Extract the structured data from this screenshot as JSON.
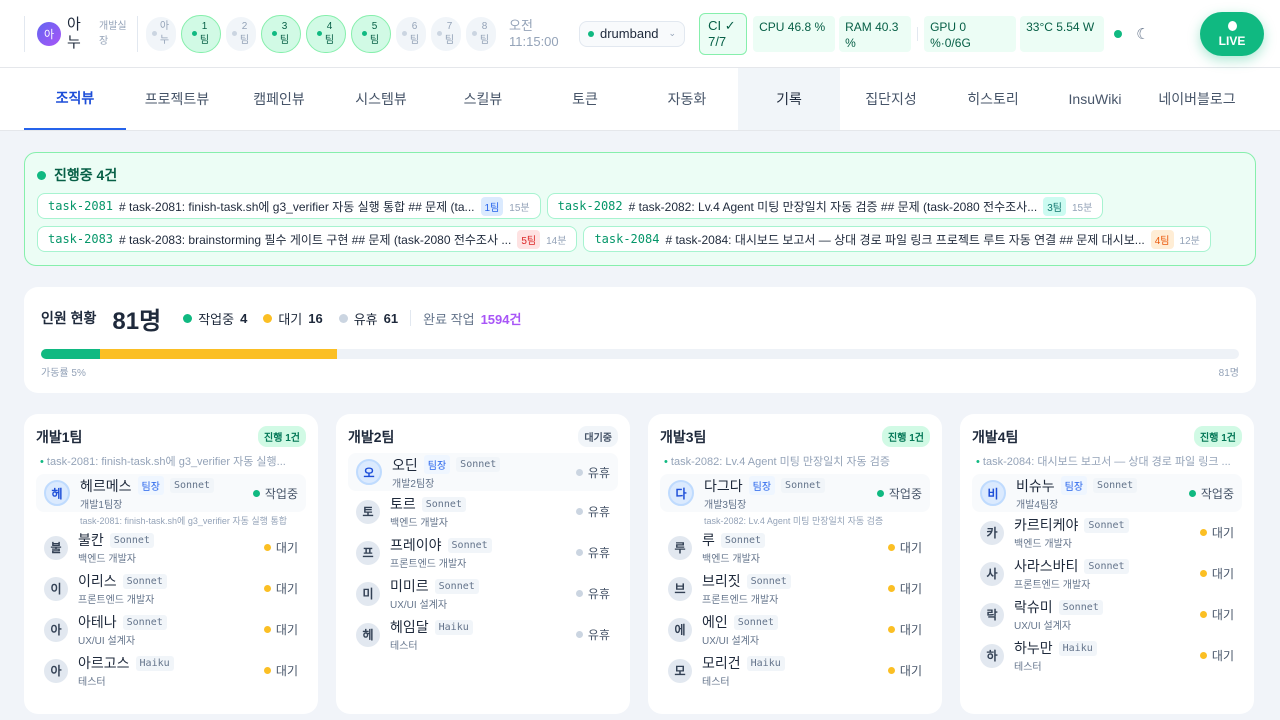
{
  "header": {
    "user": {
      "avatar": "아",
      "name": "아누",
      "role": "개발실장"
    },
    "team_chips": [
      {
        "label": "아누",
        "active": false
      },
      {
        "label": "1팀",
        "active": true
      },
      {
        "label": "2팀",
        "active": false
      },
      {
        "label": "3팀",
        "active": true
      },
      {
        "label": "4팀",
        "active": true
      },
      {
        "label": "5팀",
        "active": true
      },
      {
        "label": "6팀",
        "active": false
      },
      {
        "label": "7팀",
        "active": false
      },
      {
        "label": "8팀",
        "active": false
      }
    ],
    "time": "오전 11:15:00",
    "project": "drumband",
    "ci": "CI ✓ 7/7",
    "cpu": "CPU 46.8 %",
    "ram": "RAM 40.3 %",
    "gpu": "GPU 0 %·0/6G",
    "temp": "33°C 5.54 W",
    "theme_icon": "moon-icon",
    "live": "LIVE"
  },
  "nav": {
    "tabs": [
      "조직뷰",
      "프로젝트뷰",
      "캠페인뷰",
      "시스템뷰",
      "스킬뷰",
      "토큰",
      "자동화",
      "기록",
      "집단지성",
      "히스토리",
      "InsuWiki",
      "네이버블로그"
    ],
    "active": "조직뷰",
    "selected": "기록"
  },
  "in_progress": {
    "title": "진행중 4건",
    "items": [
      {
        "id": "task-2081",
        "text": "# task-2081: finish-task.sh에 g3_verifier 자동 실행 통합 ## 문제 (ta...",
        "team": "1팀",
        "age": "15분",
        "color": "#dbeafe",
        "tc": "#2563eb"
      },
      {
        "id": "task-2082",
        "text": "# task-2082: Lv.4 Agent 미팅 만장일치 자동 검증 ## 문제 (task-2080 전수조사...",
        "team": "3팀",
        "age": "15분",
        "color": "#ccfbf1",
        "tc": "#0f766e"
      },
      {
        "id": "task-2083",
        "text": "# task-2083: brainstorming 필수 게이트 구현 ## 문제 (task-2080 전수조사 ...",
        "team": "5팀",
        "age": "14분",
        "color": "#fee2e2",
        "tc": "#dc2626"
      },
      {
        "id": "task-2084",
        "text": "# task-2084: 대시보드 보고서 — 상대 경로 파일 링크 프로젝트 루트 자동 연결 ## 문제 대시보...",
        "team": "4팀",
        "age": "12분",
        "color": "#ffedd5",
        "tc": "#ea580c"
      }
    ]
  },
  "staff": {
    "label": "인원 현황",
    "total": "81명",
    "working_label": "작업중",
    "working": 4,
    "waiting_label": "대기",
    "waiting": 16,
    "idle_label": "유휴",
    "idle": 61,
    "done_label": "완료 작업",
    "done": "1594건",
    "utilization": "가동률 5%",
    "max": "81명",
    "colors": {
      "working": "#10b981",
      "waiting": "#fbbf24",
      "idle": "#cbd5e1"
    }
  },
  "teams": [
    {
      "name": "개발1팀",
      "badge": "진행 1건",
      "busy": true,
      "task": "task-2081: finish-task.sh에 g3_verifier 자동 실행...",
      "members": [
        {
          "av": "헤",
          "name": "헤르메스",
          "lead": "팀장",
          "model": "Sonnet",
          "role": "개발1팀장",
          "status": "작업중",
          "task": "task-2081: finish-task.sh에 g3_verifier 자동 실행 통합"
        },
        {
          "av": "불",
          "name": "불칸",
          "model": "Sonnet",
          "role": "백엔드 개발자",
          "status": "대기"
        },
        {
          "av": "이",
          "name": "이리스",
          "model": "Sonnet",
          "role": "프론트엔드 개발자",
          "status": "대기"
        },
        {
          "av": "아",
          "name": "아테나",
          "model": "Sonnet",
          "role": "UX/UI 설계자",
          "status": "대기"
        },
        {
          "av": "아",
          "name": "아르고스",
          "model": "Haiku",
          "role": "테스터",
          "status": "대기"
        }
      ]
    },
    {
      "name": "개발2팀",
      "badge": "대기중",
      "busy": false,
      "members": [
        {
          "av": "오",
          "name": "오딘",
          "lead": "팀장",
          "model": "Sonnet",
          "role": "개발2팀장",
          "status": "유휴"
        },
        {
          "av": "토",
          "name": "토르",
          "model": "Sonnet",
          "role": "백엔드 개발자",
          "status": "유휴"
        },
        {
          "av": "프",
          "name": "프레이야",
          "model": "Sonnet",
          "role": "프론트엔드 개발자",
          "status": "유휴"
        },
        {
          "av": "미",
          "name": "미미르",
          "model": "Sonnet",
          "role": "UX/UI 설계자",
          "status": "유휴"
        },
        {
          "av": "헤",
          "name": "헤임달",
          "model": "Haiku",
          "role": "테스터",
          "status": "유휴"
        }
      ]
    },
    {
      "name": "개발3팀",
      "badge": "진행 1건",
      "busy": true,
      "task": "task-2082: Lv.4 Agent 미팅 만장일치 자동 검증",
      "members": [
        {
          "av": "다",
          "name": "다그다",
          "lead": "팀장",
          "model": "Sonnet",
          "role": "개발3팀장",
          "status": "작업중",
          "task": "task-2082: Lv.4 Agent 미팅 만장일치 자동 검증"
        },
        {
          "av": "루",
          "name": "루",
          "model": "Sonnet",
          "role": "백엔드 개발자",
          "status": "대기"
        },
        {
          "av": "브",
          "name": "브리짓",
          "model": "Sonnet",
          "role": "프론트엔드 개발자",
          "status": "대기"
        },
        {
          "av": "에",
          "name": "에인",
          "model": "Sonnet",
          "role": "UX/UI 설계자",
          "status": "대기"
        },
        {
          "av": "모",
          "name": "모리건",
          "model": "Haiku",
          "role": "테스터",
          "status": "대기"
        }
      ]
    },
    {
      "name": "개발4팀",
      "badge": "진행 1건",
      "busy": true,
      "task": "task-2084: 대시보드 보고서 — 상대 경로 파일 링크 ...",
      "members": [
        {
          "av": "비",
          "name": "비슈누",
          "lead": "팀장",
          "model": "Sonnet",
          "role": "개발4팀장",
          "status": "작업중"
        },
        {
          "av": "카",
          "name": "카르티케야",
          "model": "Sonnet",
          "role": "백엔드 개발자",
          "status": "대기"
        },
        {
          "av": "사",
          "name": "사라스바티",
          "model": "Sonnet",
          "role": "프론트엔드 개발자",
          "status": "대기"
        },
        {
          "av": "락",
          "name": "락슈미",
          "model": "Sonnet",
          "role": "UX/UI 설계자",
          "status": "대기"
        },
        {
          "av": "하",
          "name": "하누만",
          "model": "Haiku",
          "role": "테스터",
          "status": "대기"
        }
      ]
    }
  ]
}
